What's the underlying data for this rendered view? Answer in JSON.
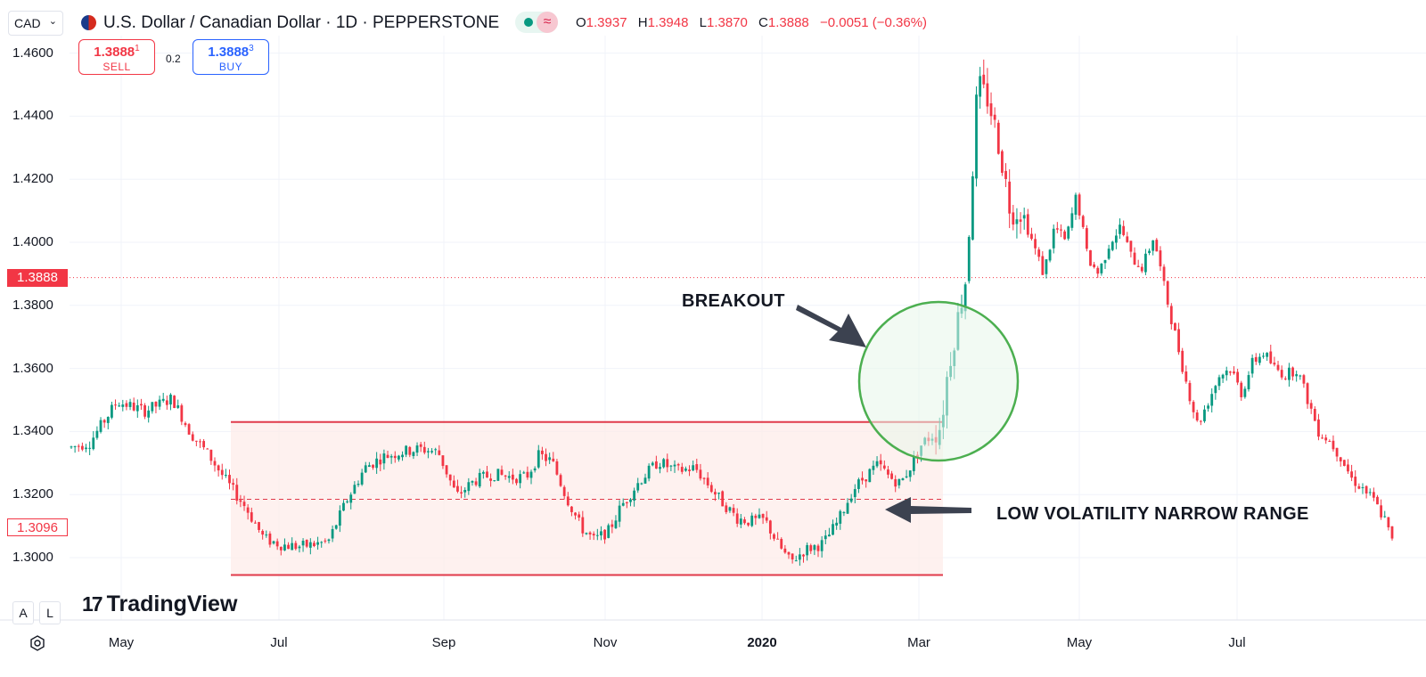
{
  "header": {
    "currency_select": "CAD",
    "title": "U.S. Dollar / Canadian Dollar · 1D · PEPPERSTONE",
    "ohlc": {
      "o_label": "O",
      "o": "1.3937",
      "h_label": "H",
      "h": "1.3948",
      "l_label": "L",
      "l": "1.3870",
      "c_label": "C",
      "c": "1.3888",
      "change": "−0.0051 (−0.36%)"
    },
    "icons": [
      "us-flag-icon",
      "chevron-down-icon",
      "market-status-icon",
      "wave-icon"
    ]
  },
  "trade": {
    "sell_price": "1.3888",
    "sell_sup": "1",
    "sell_label": "SELL",
    "spread": "0.2",
    "buy_price": "1.3888",
    "buy_sup": "3",
    "buy_label": "BUY"
  },
  "price_tags": {
    "current": "1.3888",
    "alt": "1.3096"
  },
  "annotations": {
    "breakout": "BREAKOUT",
    "range": "LOW VOLATILITY NARROW RANGE"
  },
  "branding": {
    "logo_mark": "17",
    "logo_text": "TradingView"
  },
  "scale_buttons": {
    "auto": "A",
    "log": "L"
  },
  "colors": {
    "up": "#26a69a",
    "up_fill": "#089981",
    "down": "#f23645",
    "range_fill": "#fdecea",
    "range_line": "#e03a4a",
    "circle_stroke": "#4caf50",
    "circle_fill": "#e8f5e9"
  },
  "chart_data": {
    "type": "candlestick",
    "title": "U.S. Dollar / Canadian Dollar · 1D · PEPPERSTONE",
    "ylim": [
      1.2945,
      1.4685
    ],
    "y_ticks": [
      "1.4600",
      "1.4400",
      "1.4200",
      "1.4000",
      "1.3800",
      "1.3600",
      "1.3400",
      "1.3200",
      "1.3000"
    ],
    "x_ticks": [
      {
        "label": "May",
        "bold": false
      },
      {
        "label": "Jul",
        "bold": false
      },
      {
        "label": "Sep",
        "bold": false
      },
      {
        "label": "Nov",
        "bold": false
      },
      {
        "label": "2020",
        "bold": true
      },
      {
        "label": "Mar",
        "bold": false
      },
      {
        "label": "May",
        "bold": false
      },
      {
        "label": "Jul",
        "bold": false
      }
    ],
    "range": {
      "top": 1.343,
      "mid": 1.3185,
      "bottom": 1.2945
    },
    "current_price": 1.3888,
    "path": [
      [
        0,
        1.335
      ],
      [
        10,
        1.3365
      ],
      [
        25,
        1.3495
      ],
      [
        40,
        1.3465
      ],
      [
        55,
        1.3505
      ],
      [
        65,
        1.3395
      ],
      [
        75,
        1.3325
      ],
      [
        85,
        1.3238
      ],
      [
        95,
        1.316
      ],
      [
        105,
        1.306
      ],
      [
        115,
        1.304
      ],
      [
        125,
        1.3035
      ],
      [
        140,
        1.305
      ],
      [
        150,
        1.318
      ],
      [
        160,
        1.3285
      ],
      [
        170,
        1.332
      ],
      [
        180,
        1.3335
      ],
      [
        190,
        1.3345
      ],
      [
        200,
        1.3335
      ],
      [
        210,
        1.3195
      ],
      [
        220,
        1.3245
      ],
      [
        230,
        1.3265
      ],
      [
        240,
        1.3255
      ],
      [
        248,
        1.3255
      ],
      [
        255,
        1.3325
      ],
      [
        262,
        1.3305
      ],
      [
        270,
        1.319
      ],
      [
        278,
        1.3095
      ],
      [
        285,
        1.3055
      ],
      [
        293,
        1.3085
      ],
      [
        300,
        1.3165
      ],
      [
        310,
        1.3245
      ],
      [
        320,
        1.3305
      ],
      [
        330,
        1.3275
      ],
      [
        340,
        1.3285
      ],
      [
        348,
        1.3225
      ],
      [
        355,
        1.3175
      ],
      [
        363,
        1.3125
      ],
      [
        370,
        1.3115
      ],
      [
        378,
        1.312
      ],
      [
        385,
        1.3045
      ],
      [
        392,
        1.2985
      ],
      [
        400,
        1.3025
      ],
      [
        410,
        1.3045
      ],
      [
        418,
        1.3115
      ],
      [
        426,
        1.3215
      ],
      [
        434,
        1.3265
      ],
      [
        440,
        1.3295
      ],
      [
        446,
        1.3255
      ],
      [
        452,
        1.3235
      ],
      [
        458,
        1.3295
      ],
      [
        464,
        1.3365
      ],
      [
        470,
        1.339
      ],
      [
        474,
        1.342
      ],
      [
        478,
        1.36
      ],
      [
        482,
        1.372
      ],
      [
        488,
        1.39
      ],
      [
        494,
        1.45
      ],
      [
        500,
        1.445
      ],
      [
        506,
        1.43
      ],
      [
        512,
        1.41
      ],
      [
        518,
        1.41
      ],
      [
        524,
        1.4
      ],
      [
        530,
        1.39
      ],
      [
        536,
        1.405
      ],
      [
        542,
        1.4
      ],
      [
        548,
        1.415
      ],
      [
        554,
        1.395
      ],
      [
        560,
        1.39
      ],
      [
        566,
        1.4
      ],
      [
        572,
        1.405
      ],
      [
        578,
        1.395
      ],
      [
        584,
        1.392
      ],
      [
        590,
        1.402
      ],
      [
        596,
        1.385
      ],
      [
        602,
        1.37
      ],
      [
        608,
        1.355
      ],
      [
        614,
        1.342
      ],
      [
        620,
        1.35
      ],
      [
        626,
        1.358
      ],
      [
        632,
        1.36
      ],
      [
        638,
        1.352
      ],
      [
        644,
        1.362
      ],
      [
        650,
        1.365
      ],
      [
        656,
        1.36
      ],
      [
        662,
        1.358
      ],
      [
        668,
        1.36
      ],
      [
        674,
        1.35
      ],
      [
        680,
        1.34
      ],
      [
        686,
        1.337
      ],
      [
        692,
        1.332
      ],
      [
        698,
        1.325
      ],
      [
        704,
        1.322
      ],
      [
        710,
        1.318
      ],
      [
        716,
        1.312
      ],
      [
        720,
        1.305
      ]
    ],
    "candle_count": 360
  }
}
